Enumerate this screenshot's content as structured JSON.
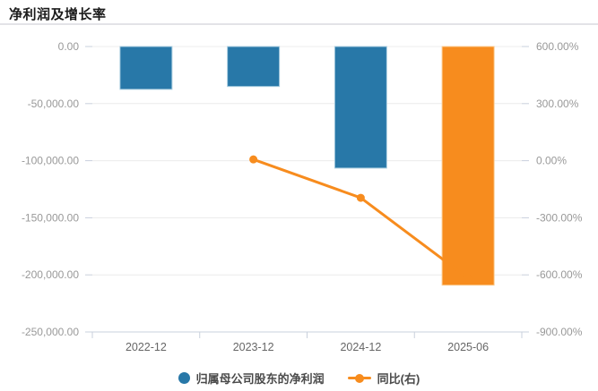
{
  "header": {
    "title": "净利润及增长率"
  },
  "colors": {
    "bar_blue": "#2878a8",
    "bar_blue_border": "#a9cde0",
    "bar_orange": "#f78c1e",
    "bar_orange_border": "#fbc98c",
    "line_orange": "#f78c1e",
    "grid": "#ececec",
    "axis_line": "#c9d0dc",
    "tick_label": "#999999",
    "x_label": "#666666",
    "legend_text": "#4a4a4a"
  },
  "chart_data": {
    "type": "bar+line",
    "title": "净利润及增长率",
    "categories": [
      "2022-12",
      "2023-12",
      "2024-12",
      "2025-06"
    ],
    "series": [
      {
        "name": "归属母公司股东的净利润",
        "type": "bar",
        "axis": "left",
        "values": [
          -37500,
          -35000,
          -106500,
          -209000
        ],
        "point_colors": [
          "#2878a8",
          "#2878a8",
          "#2878a8",
          "#f78c1e"
        ],
        "point_borders": [
          "#a9cde0",
          "#a9cde0",
          "#a9cde0",
          "#fbc98c"
        ]
      },
      {
        "name": "同比(右)",
        "type": "line",
        "axis": "right",
        "values": [
          null,
          6.7,
          -195,
          -618
        ],
        "color": "#f78c1e"
      }
    ],
    "left_axis": {
      "max": 0,
      "min": -250000,
      "tick_values": [
        0,
        -50000,
        -100000,
        -150000,
        -200000,
        -250000
      ],
      "tick_labels": [
        "0.00",
        "-50,000.00",
        "-100,000.00",
        "-150,000.00",
        "-200,000.00",
        "-250,000.00"
      ]
    },
    "right_axis": {
      "max": 600,
      "min": -900,
      "tick_values": [
        600,
        300,
        0,
        -300,
        -600,
        -900
      ],
      "tick_labels": [
        "600.00%",
        "300.00%",
        "0.00%",
        "-300.00%",
        "-600.00%",
        "-900.00%"
      ]
    },
    "grid_on": true,
    "legend_position": "bottom-center"
  },
  "legend": {
    "items": [
      {
        "label": "归属母公司股东的净利润",
        "marker": "circle",
        "color": "#2878a8"
      },
      {
        "label": "同比(右)",
        "marker": "line-dot",
        "color": "#f78c1e"
      }
    ]
  }
}
